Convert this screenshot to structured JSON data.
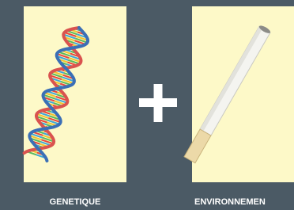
{
  "panels": [
    {
      "label": "GENETIQUE"
    },
    {
      "label": "ENVIRONNEMEN"
    }
  ]
}
